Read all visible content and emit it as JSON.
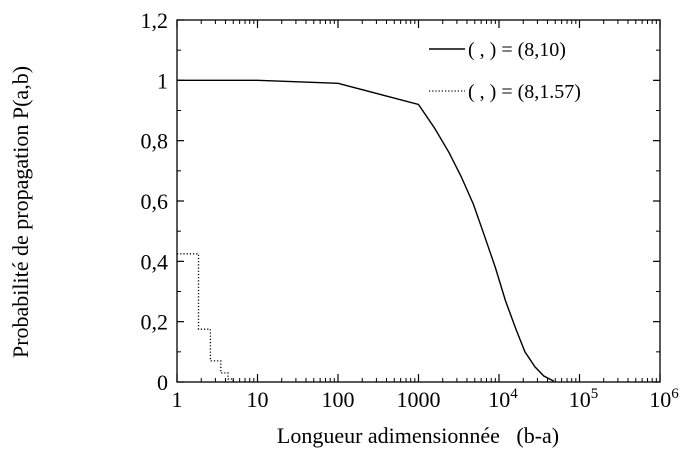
{
  "chart_data": {
    "type": "line",
    "title": "",
    "xlabel": "Longueur adimensionnée   (b-a)",
    "ylabel": "Probabilité de propagation P(a,b)",
    "x_scale": "log",
    "xlim": [
      1,
      1000000
    ],
    "ylim": [
      0,
      1.2
    ],
    "grid": false,
    "legend_position": "top-right",
    "x_ticks": [
      {
        "value": 1,
        "label": "1",
        "sup": ""
      },
      {
        "value": 10,
        "label": "10",
        "sup": ""
      },
      {
        "value": 100,
        "label": "100",
        "sup": ""
      },
      {
        "value": 1000,
        "label": "1000",
        "sup": ""
      },
      {
        "value": 10000,
        "label": "10",
        "sup": "4"
      },
      {
        "value": 100000,
        "label": "10",
        "sup": "5"
      },
      {
        "value": 1000000,
        "label": "10",
        "sup": "6"
      }
    ],
    "y_ticks": [
      {
        "value": 0,
        "label": "0"
      },
      {
        "value": 0.2,
        "label": "0,2"
      },
      {
        "value": 0.4,
        "label": "0,4"
      },
      {
        "value": 0.6,
        "label": "0,6"
      },
      {
        "value": 0.8,
        "label": "0,8"
      },
      {
        "value": 1,
        "label": "1"
      },
      {
        "value": 1.2,
        "label": "1,2"
      }
    ],
    "series": [
      {
        "legend_label": "( , )  =  (8,10)",
        "style": "solid",
        "color": "#000000",
        "x": [
          1,
          10,
          100,
          1000,
          1600,
          2400,
          3400,
          4800,
          6500,
          9000,
          12000,
          16000,
          21000,
          28000,
          36000,
          48000
        ],
        "y": [
          1,
          1,
          0.99,
          0.92,
          0.84,
          0.76,
          0.68,
          0.59,
          0.49,
          0.38,
          0.27,
          0.18,
          0.1,
          0.05,
          0.02,
          0.003
        ]
      },
      {
        "legend_label": "( , )  =  (8,1.57)",
        "style": "dotted",
        "color": "#000000",
        "step": true,
        "x": [
          1,
          1.85,
          2.6,
          3.5,
          4.3,
          5.0
        ],
        "y": [
          0.425,
          0.175,
          0.07,
          0.03,
          0.01,
          0
        ]
      }
    ]
  }
}
